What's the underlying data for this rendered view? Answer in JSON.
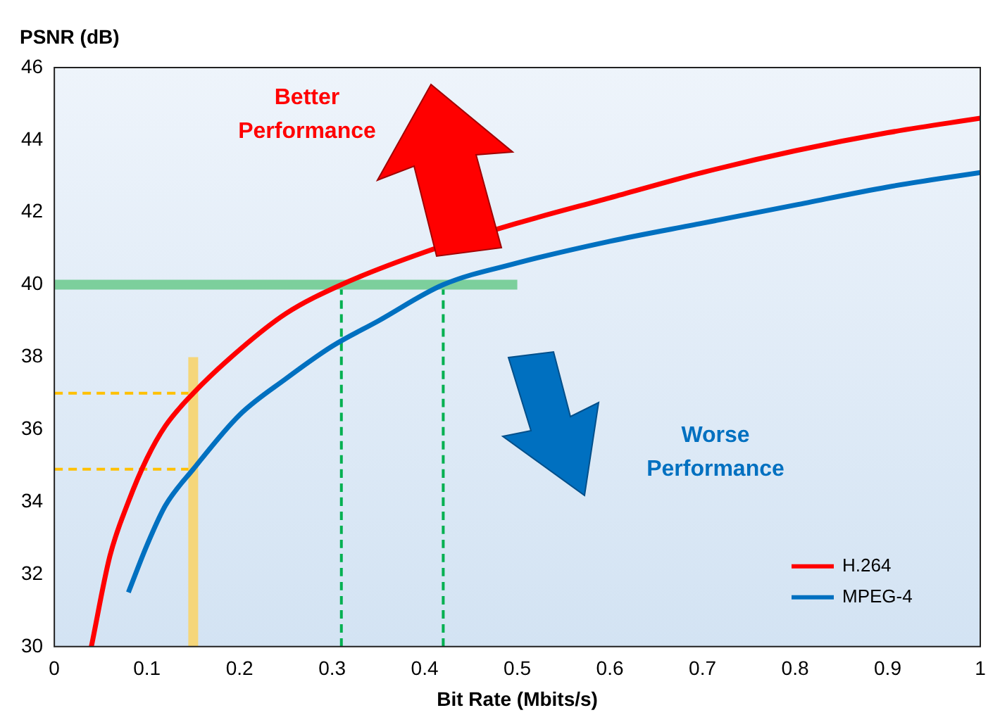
{
  "chart_data": {
    "type": "line",
    "xlabel": "Bit Rate (Mbits/s)",
    "ylabel": "PSNR (dB)",
    "xlim": [
      0,
      1
    ],
    "xticks": [
      0,
      0.1,
      0.2,
      0.3,
      0.4,
      0.5,
      0.6,
      0.7,
      0.8,
      0.9,
      1
    ],
    "ylim": [
      30,
      46
    ],
    "yticks": [
      30,
      32,
      34,
      36,
      38,
      40,
      42,
      44,
      46
    ],
    "grid": false,
    "legend": "bottom right",
    "marker": "none",
    "annotations": [
      "Better Performance",
      "Worse Performance"
    ],
    "series": [
      {
        "name": "H.264",
        "color": "#ff0000",
        "x": [
          0.04,
          0.06,
          0.08,
          0.1,
          0.12,
          0.15,
          0.2,
          0.25,
          0.31,
          0.4,
          0.5,
          0.6,
          0.7,
          0.8,
          0.9,
          1.0
        ],
        "values": [
          30,
          32.5,
          34,
          35.2,
          36.1,
          37,
          38.2,
          39.2,
          40,
          40.9,
          41.7,
          42.4,
          43.1,
          43.7,
          44.2,
          44.6
        ]
      },
      {
        "name": "MPEG-4",
        "color": "#0070c0",
        "x": [
          0.08,
          0.1,
          0.12,
          0.15,
          0.2,
          0.25,
          0.3,
          0.35,
          0.42,
          0.5,
          0.6,
          0.7,
          0.8,
          0.9,
          1.0
        ],
        "values": [
          31.5,
          32.8,
          33.9,
          34.9,
          36.4,
          37.4,
          38.3,
          39,
          40,
          40.6,
          41.2,
          41.7,
          42.2,
          42.7,
          43.1
        ]
      },
      {
        "color": "#7ccf9c",
        "x": [
          0,
          0.5
        ],
        "values": [
          40,
          40
        ]
      },
      {
        "color": "#f5d67a",
        "x": [
          0.15,
          0.15
        ],
        "values": [
          30,
          38
        ]
      },
      {
        "color": "#00b050",
        "line_style": "dashed",
        "x": [
          0.31,
          0.31
        ],
        "values": [
          30,
          40
        ]
      },
      {
        "color": "#00b050",
        "line_style": "dashed",
        "x": [
          0.42,
          0.42
        ],
        "values": [
          30,
          40
        ]
      },
      {
        "color": "#ffc000",
        "line_style": "dashed",
        "x": [
          0,
          0.15
        ],
        "values": [
          37,
          37
        ]
      },
      {
        "color": "#ffc000",
        "line_style": "dashed",
        "x": [
          0,
          0.15
        ],
        "values": [
          34.9,
          34.9
        ]
      }
    ]
  }
}
